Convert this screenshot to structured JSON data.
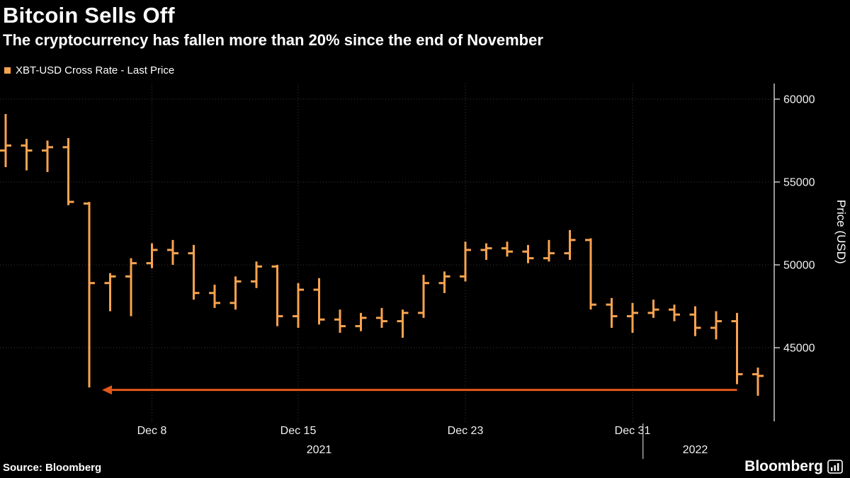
{
  "footer": {
    "source": "Source: Bloomberg",
    "brand": "Bloomberg"
  },
  "chart_data": {
    "type": "ohlc-bar",
    "title": "Bitcoin Sells Off",
    "subtitle": "The cryptocurrency has fallen more than 20% since the end of November",
    "legend": "XBT-USD Cross Rate - Last Price",
    "ylabel": "Price (USD)",
    "ylim": [
      40500,
      60900
    ],
    "y_ticks": [
      45000,
      50000,
      55000,
      60000
    ],
    "x_ticks": [
      {
        "label": "Dec 8",
        "bar_index": 7
      },
      {
        "label": "Dec 15",
        "bar_index": 14
      },
      {
        "label": "Dec 23",
        "bar_index": 22
      },
      {
        "label": "Dec 31",
        "bar_index": 30
      }
    ],
    "year_ticks": [
      {
        "label": "2021",
        "bar_index": 15
      },
      {
        "label": "2022",
        "bar_index": 33
      }
    ],
    "bars": [
      {
        "date": "Dec 1",
        "open": 56900,
        "high": 59100,
        "low": 55900,
        "close": 57200
      },
      {
        "date": "Dec 2",
        "open": 57200,
        "high": 57600,
        "low": 55700,
        "close": 56900
      },
      {
        "date": "Dec 3",
        "open": 56900,
        "high": 57500,
        "low": 55600,
        "close": 57100
      },
      {
        "date": "Dec 4",
        "open": 57100,
        "high": 57650,
        "low": 53600,
        "close": 53800
      },
      {
        "date": "Dec 5",
        "open": 53700,
        "high": 53800,
        "low": 42600,
        "close": 48900
      },
      {
        "date": "Dec 6",
        "open": 48900,
        "high": 49500,
        "low": 47200,
        "close": 49300
      },
      {
        "date": "Dec 7",
        "open": 49300,
        "high": 50400,
        "low": 46900,
        "close": 50100
      },
      {
        "date": "Dec 8",
        "open": 50100,
        "high": 51300,
        "low": 49800,
        "close": 50900
      },
      {
        "date": "Dec 9",
        "open": 50900,
        "high": 51500,
        "low": 50000,
        "close": 50700
      },
      {
        "date": "Dec 10",
        "open": 50700,
        "high": 51200,
        "low": 47900,
        "close": 48300
      },
      {
        "date": "Dec 11",
        "open": 48300,
        "high": 48800,
        "low": 47400,
        "close": 47700
      },
      {
        "date": "Dec 12",
        "open": 47700,
        "high": 49300,
        "low": 47300,
        "close": 49000
      },
      {
        "date": "Dec 13",
        "open": 49000,
        "high": 50200,
        "low": 48600,
        "close": 49900
      },
      {
        "date": "Dec 14",
        "open": 49900,
        "high": 50000,
        "low": 46300,
        "close": 46900
      },
      {
        "date": "Dec 15",
        "open": 46900,
        "high": 48900,
        "low": 46200,
        "close": 48500
      },
      {
        "date": "Dec 16",
        "open": 48500,
        "high": 49200,
        "low": 46400,
        "close": 46700
      },
      {
        "date": "Dec 17",
        "open": 46700,
        "high": 47300,
        "low": 45900,
        "close": 46300
      },
      {
        "date": "Dec 18",
        "open": 46300,
        "high": 47100,
        "low": 46000,
        "close": 46800
      },
      {
        "date": "Dec 19",
        "open": 46800,
        "high": 47400,
        "low": 46200,
        "close": 46600
      },
      {
        "date": "Dec 20",
        "open": 46600,
        "high": 47300,
        "low": 45600,
        "close": 47100
      },
      {
        "date": "Dec 21",
        "open": 47100,
        "high": 49400,
        "low": 46800,
        "close": 48900
      },
      {
        "date": "Dec 22",
        "open": 48900,
        "high": 49600,
        "low": 48300,
        "close": 49300
      },
      {
        "date": "Dec 23",
        "open": 49300,
        "high": 51400,
        "low": 49000,
        "close": 50900
      },
      {
        "date": "Dec 24",
        "open": 50900,
        "high": 51300,
        "low": 50300,
        "close": 51000
      },
      {
        "date": "Dec 25",
        "open": 51000,
        "high": 51400,
        "low": 50500,
        "close": 50800
      },
      {
        "date": "Dec 26",
        "open": 50800,
        "high": 51200,
        "low": 50100,
        "close": 50400
      },
      {
        "date": "Dec 27",
        "open": 50400,
        "high": 51500,
        "low": 50200,
        "close": 50700
      },
      {
        "date": "Dec 28",
        "open": 50700,
        "high": 52100,
        "low": 50300,
        "close": 51500
      },
      {
        "date": "Dec 29",
        "open": 51500,
        "high": 51600,
        "low": 47300,
        "close": 47600
      },
      {
        "date": "Dec 30",
        "open": 47600,
        "high": 48000,
        "low": 46200,
        "close": 46900
      },
      {
        "date": "Dec 31",
        "open": 46900,
        "high": 47700,
        "low": 45900,
        "close": 47100
      },
      {
        "date": "Jan 1",
        "open": 47100,
        "high": 47900,
        "low": 46800,
        "close": 47300
      },
      {
        "date": "Jan 2",
        "open": 47300,
        "high": 47600,
        "low": 46600,
        "close": 47000
      },
      {
        "date": "Jan 3",
        "open": 47000,
        "high": 47500,
        "low": 45700,
        "close": 46200
      },
      {
        "date": "Jan 4",
        "open": 46200,
        "high": 47200,
        "low": 45500,
        "close": 46600
      },
      {
        "date": "Jan 5",
        "open": 46600,
        "high": 47100,
        "low": 42800,
        "close": 43400
      },
      {
        "date": "Jan 6",
        "open": 43400,
        "high": 43800,
        "low": 42100,
        "close": 43300
      }
    ],
    "arrow": {
      "y_value": 42450,
      "from_bar": 35,
      "to_bar": 4,
      "color": "#E4571B"
    },
    "colors": {
      "bar": "#F9A34F",
      "grid": "#3A3A3A",
      "axis": "#C8C8C8",
      "text": "#F2F2F2"
    },
    "grid": "dotted",
    "legend_position": "top-left",
    "y_axis_position": "right"
  }
}
